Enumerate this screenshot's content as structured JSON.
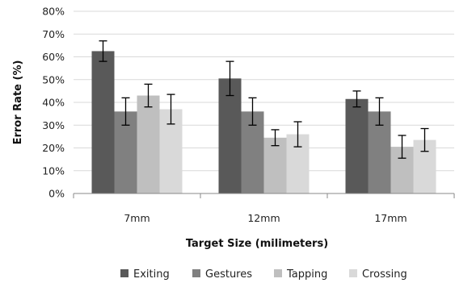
{
  "chart_data": {
    "type": "bar",
    "title": "",
    "xlabel": "Target Size (milimeters)",
    "ylabel": "Error Rate (%)",
    "ylim": [
      0,
      80
    ],
    "y_tick_step": 10,
    "y_tick_suffix": "%",
    "grid": true,
    "legend_position": "bottom",
    "categories": [
      "7mm",
      "12mm",
      "17mm"
    ],
    "series": [
      {
        "name": "Exiting",
        "color": "#595959",
        "values": [
          62.5,
          50.5,
          41.5
        ],
        "errors": [
          4.5,
          7.5,
          3.5
        ]
      },
      {
        "name": "Gestures",
        "color": "#808080",
        "values": [
          36.0,
          36.0,
          36.0
        ],
        "errors": [
          6.0,
          6.0,
          6.0
        ]
      },
      {
        "name": "Tapping",
        "color": "#bfbfbf",
        "values": [
          43.0,
          24.5,
          20.5
        ],
        "errors": [
          5.0,
          3.5,
          5.0
        ]
      },
      {
        "name": "Crossing",
        "color": "#d9d9d9",
        "values": [
          37.0,
          26.0,
          23.5
        ],
        "errors": [
          6.5,
          5.5,
          5.0
        ]
      }
    ]
  }
}
